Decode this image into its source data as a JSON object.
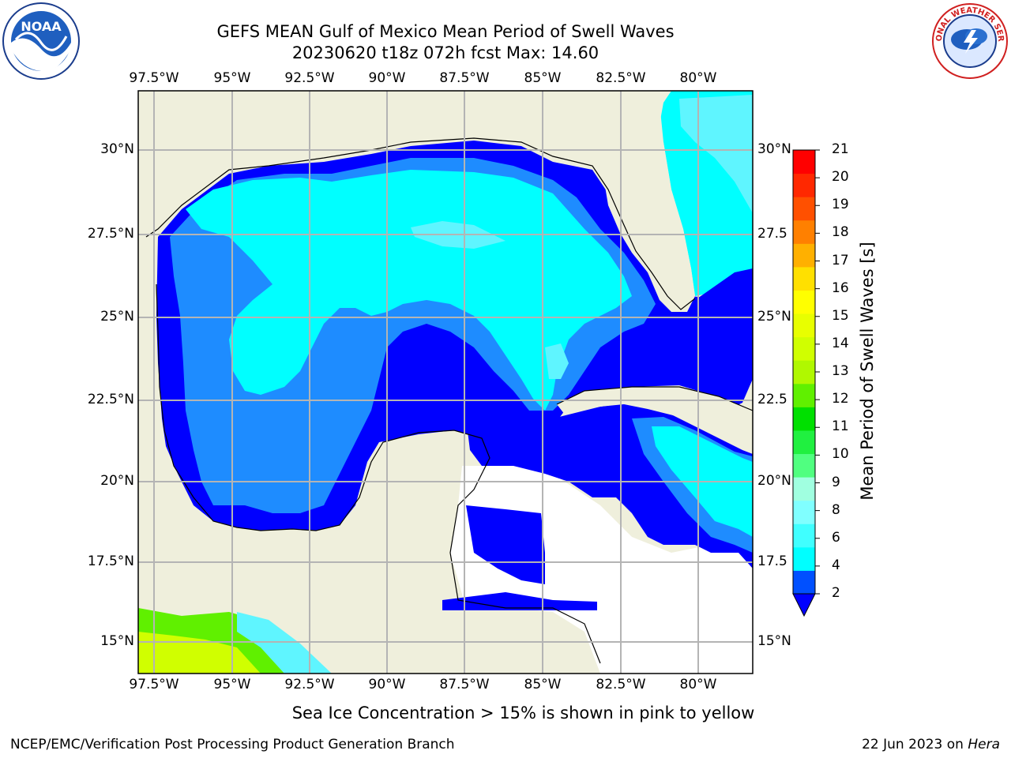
{
  "title_line1": "GEFS MEAN Gulf of Mexico Mean Period of Swell Waves",
  "title_line2": "20230620 t18z 072h fcst   Max: 14.60",
  "logos": {
    "left": {
      "name": "NOAA",
      "ring_text": "NATIONAL OCEANIC AND ATMOSPHERIC ADMINISTRATION · U.S. DEPARTMENT OF COMMERCE"
    },
    "right": {
      "name": "NATIONAL WEATHER SERVICE"
    }
  },
  "lon_ticks": [
    "97.5°W",
    "95°W",
    "92.5°W",
    "90°W",
    "87.5°W",
    "85°W",
    "82.5°W",
    "80°W"
  ],
  "lat_ticks_left": [
    "30°N",
    "27.5°N",
    "25°N",
    "22.5°N",
    "20°N",
    "17.5°N",
    "15°N"
  ],
  "lat_ticks_right": [
    "30°N",
    "27.5",
    "25°N",
    "22.5",
    "20°N",
    "17.5",
    "15°N"
  ],
  "colorbar": {
    "label": "Mean Period of Swell Waves [s]",
    "ticks": [
      "21",
      "20",
      "19",
      "18",
      "17",
      "16",
      "15",
      "14",
      "13",
      "12",
      "11",
      "10",
      "9",
      "8",
      "6",
      "4",
      "2"
    ],
    "colors": [
      "#0050ff",
      "#00ffff",
      "#40ffff",
      "#80ffff",
      "#a0ffe0",
      "#50ff80",
      "#20f040",
      "#00e000",
      "#60f000",
      "#b0f800",
      "#d0ff00",
      "#e8ff00",
      "#ffff00",
      "#ffe000",
      "#ffb000",
      "#ff8000",
      "#ff5000",
      "#ff2800",
      "#ff0000"
    ],
    "under_color": "#0000ff"
  },
  "colors": {
    "land": "#efefdc",
    "grid": "#b4b4b4",
    "level_2_4": "#0000ff",
    "level_4_6": "#1e8cff",
    "level_6_8": "#00ffff",
    "level_8_9": "#5ff5ff"
  },
  "bottom_note": "Sea Ice Concentration > 15% is shown in pink to yellow",
  "footer_left": "NCEP/EMC/Verification Post Processing Product Generation Branch",
  "footer_right_date": "22 Jun 2023 on ",
  "footer_right_host": "Hera"
}
